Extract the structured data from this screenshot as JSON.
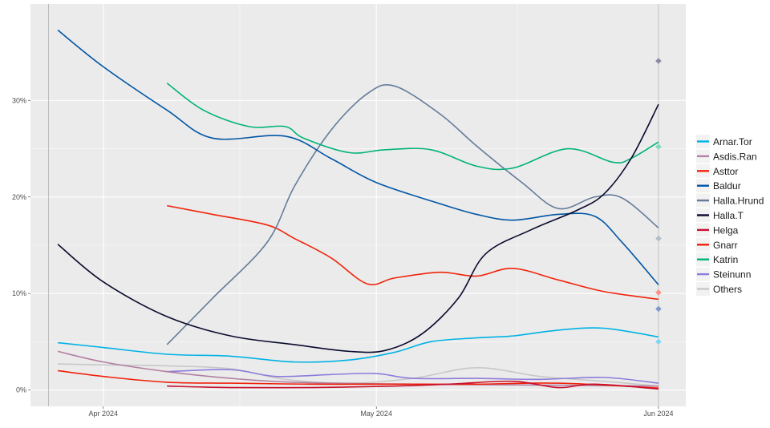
{
  "chart_data": {
    "type": "line",
    "title": "",
    "xlabel": "",
    "ylabel": "",
    "ylim": [
      -1.7,
      40
    ],
    "xlim": [
      "2024-03-24",
      "2024-06-04"
    ],
    "grid": true,
    "legend_position": "right",
    "x_ticks": [
      {
        "date": "2024-04-01",
        "label": "Apr 2024"
      },
      {
        "date": "2024-05-01",
        "label": "May 2024"
      },
      {
        "date": "2024-06-01",
        "label": "Jun 2024"
      }
    ],
    "y_ticks": [
      {
        "value": 0,
        "label": "0%"
      },
      {
        "value": 10,
        "label": "10%"
      },
      {
        "value": 20,
        "label": "20%"
      },
      {
        "value": 30,
        "label": "30%"
      }
    ],
    "vlines": [
      "2024-03-26",
      "2024-06-01"
    ],
    "series": [
      {
        "name": "Arnar.Tor",
        "color": "#00B2E5",
        "points": [
          [
            "2024-03-27",
            4.9
          ],
          [
            "2024-04-01",
            4.4
          ],
          [
            "2024-04-08",
            3.7
          ],
          [
            "2024-04-15",
            3.5
          ],
          [
            "2024-04-22",
            2.9
          ],
          [
            "2024-04-28",
            3.1
          ],
          [
            "2024-05-03",
            3.9
          ],
          [
            "2024-05-07",
            5.0
          ],
          [
            "2024-05-12",
            5.4
          ],
          [
            "2024-05-16",
            5.6
          ],
          [
            "2024-05-21",
            6.2
          ],
          [
            "2024-05-26",
            6.4
          ],
          [
            "2024-06-01",
            5.5
          ]
        ]
      },
      {
        "name": "Asdis.Ran",
        "color": "#B37FA3",
        "points": [
          [
            "2024-03-27",
            4.0
          ],
          [
            "2024-04-01",
            2.9
          ],
          [
            "2024-04-08",
            1.9
          ],
          [
            "2024-04-15",
            1.2
          ],
          [
            "2024-04-22",
            0.8
          ],
          [
            "2024-05-05",
            0.6
          ],
          [
            "2024-05-20",
            0.5
          ],
          [
            "2024-06-01",
            0.4
          ]
        ]
      },
      {
        "name": "Asttor",
        "color": "#F0240B",
        "points": [
          [
            "2024-04-08",
            19.1
          ],
          [
            "2024-04-13",
            18.2
          ],
          [
            "2024-04-19",
            17.1
          ],
          [
            "2024-04-22",
            15.7
          ],
          [
            "2024-04-26",
            13.7
          ],
          [
            "2024-04-30",
            11.0
          ],
          [
            "2024-05-03",
            11.6
          ],
          [
            "2024-05-08",
            12.2
          ],
          [
            "2024-05-12",
            11.8
          ],
          [
            "2024-05-16",
            12.6
          ],
          [
            "2024-05-21",
            11.4
          ],
          [
            "2024-05-26",
            10.2
          ],
          [
            "2024-06-01",
            9.4
          ]
        ]
      },
      {
        "name": "Baldur",
        "color": "#0055A4",
        "points": [
          [
            "2024-03-27",
            37.3
          ],
          [
            "2024-04-01",
            33.5
          ],
          [
            "2024-04-08",
            29.0
          ],
          [
            "2024-04-13",
            26.1
          ],
          [
            "2024-04-21",
            26.3
          ],
          [
            "2024-04-26",
            24.0
          ],
          [
            "2024-05-01",
            21.5
          ],
          [
            "2024-05-08",
            19.3
          ],
          [
            "2024-05-12",
            18.2
          ],
          [
            "2024-05-16",
            17.6
          ],
          [
            "2024-05-21",
            18.2
          ],
          [
            "2024-05-25",
            18.0
          ],
          [
            "2024-05-28",
            15.3
          ],
          [
            "2024-06-01",
            10.9
          ]
        ]
      },
      {
        "name": "Halla.Hrund",
        "color": "#647C99",
        "points": [
          [
            "2024-04-08",
            4.7
          ],
          [
            "2024-04-13",
            9.5
          ],
          [
            "2024-04-19",
            15.3
          ],
          [
            "2024-04-22",
            21.1
          ],
          [
            "2024-04-26",
            26.9
          ],
          [
            "2024-04-30",
            30.7
          ],
          [
            "2024-05-03",
            31.5
          ],
          [
            "2024-05-08",
            28.6
          ],
          [
            "2024-05-12",
            25.3
          ],
          [
            "2024-05-17",
            21.5
          ],
          [
            "2024-05-21",
            18.8
          ],
          [
            "2024-05-25",
            20.0
          ],
          [
            "2024-05-28",
            19.9
          ],
          [
            "2024-06-01",
            16.8
          ]
        ]
      },
      {
        "name": "Halla.T",
        "color": "#0A0A2E",
        "points": [
          [
            "2024-03-27",
            15.1
          ],
          [
            "2024-04-01",
            11.2
          ],
          [
            "2024-04-08",
            7.6
          ],
          [
            "2024-04-15",
            5.6
          ],
          [
            "2024-04-22",
            4.7
          ],
          [
            "2024-04-28",
            4.0
          ],
          [
            "2024-05-02",
            4.1
          ],
          [
            "2024-05-06",
            5.8
          ],
          [
            "2024-05-10",
            9.5
          ],
          [
            "2024-05-13",
            14.1
          ],
          [
            "2024-05-18",
            16.6
          ],
          [
            "2024-05-23",
            18.6
          ],
          [
            "2024-05-26",
            20.3
          ],
          [
            "2024-05-29",
            24.0
          ],
          [
            "2024-06-01",
            29.6
          ]
        ]
      },
      {
        "name": "Helga",
        "color": "#C8102E",
        "points": [
          [
            "2024-04-08",
            0.4
          ],
          [
            "2024-04-15",
            0.25
          ],
          [
            "2024-04-24",
            0.25
          ],
          [
            "2024-05-03",
            0.4
          ],
          [
            "2024-05-09",
            0.6
          ],
          [
            "2024-05-16",
            0.9
          ],
          [
            "2024-05-21",
            0.25
          ],
          [
            "2024-05-25",
            0.6
          ],
          [
            "2024-06-01",
            0.1
          ]
        ]
      },
      {
        "name": "Gnarr",
        "color": "#F0200A",
        "points": [
          [
            "2024-03-27",
            2.0
          ],
          [
            "2024-04-01",
            1.4
          ],
          [
            "2024-04-08",
            0.8
          ],
          [
            "2024-04-15",
            0.7
          ],
          [
            "2024-04-24",
            0.6
          ],
          [
            "2024-05-03",
            0.6
          ],
          [
            "2024-05-12",
            0.6
          ],
          [
            "2024-05-21",
            0.7
          ],
          [
            "2024-06-01",
            0.2
          ]
        ]
      },
      {
        "name": "Katrin",
        "color": "#00B37A",
        "points": [
          [
            "2024-04-08",
            31.8
          ],
          [
            "2024-04-12",
            29.0
          ],
          [
            "2024-04-17",
            27.3
          ],
          [
            "2024-04-21",
            27.3
          ],
          [
            "2024-04-23",
            26.1
          ],
          [
            "2024-04-28",
            24.6
          ],
          [
            "2024-05-02",
            24.9
          ],
          [
            "2024-05-07",
            24.9
          ],
          [
            "2024-05-12",
            23.2
          ],
          [
            "2024-05-16",
            23.0
          ],
          [
            "2024-05-22",
            25.0
          ],
          [
            "2024-05-27",
            23.6
          ],
          [
            "2024-05-29",
            24.0
          ],
          [
            "2024-06-01",
            25.7
          ]
        ]
      },
      {
        "name": "Steinunn",
        "color": "#8E7CDB",
        "points": [
          [
            "2024-04-08",
            1.9
          ],
          [
            "2024-04-15",
            2.1
          ],
          [
            "2024-04-20",
            1.4
          ],
          [
            "2024-04-26",
            1.6
          ],
          [
            "2024-05-01",
            1.7
          ],
          [
            "2024-05-05",
            1.2
          ],
          [
            "2024-05-12",
            1.2
          ],
          [
            "2024-05-19",
            1.1
          ],
          [
            "2024-05-26",
            1.3
          ],
          [
            "2024-06-01",
            0.7
          ]
        ]
      },
      {
        "name": "Others",
        "color": "#C8C8C8",
        "points": [
          [
            "2024-03-27",
            2.7
          ],
          [
            "2024-04-01",
            2.6
          ],
          [
            "2024-04-08",
            2.5
          ],
          [
            "2024-04-15",
            2.2
          ],
          [
            "2024-04-21",
            1.1
          ],
          [
            "2024-04-28",
            0.7
          ],
          [
            "2024-05-05",
            1.2
          ],
          [
            "2024-05-12",
            2.3
          ],
          [
            "2024-05-19",
            1.4
          ],
          [
            "2024-05-26",
            0.9
          ],
          [
            "2024-06-01",
            0.4
          ]
        ]
      }
    ],
    "result_markers": [
      {
        "date": "2024-06-01",
        "value": 34.1,
        "color": "#8C8CA0"
      },
      {
        "date": "2024-06-01",
        "value": 25.2,
        "color": "#7FD9BC"
      },
      {
        "date": "2024-06-01",
        "value": 15.7,
        "color": "#B1BDCC"
      },
      {
        "date": "2024-06-01",
        "value": 10.1,
        "color": "#F79485"
      },
      {
        "date": "2024-06-01",
        "value": 8.4,
        "color": "#7F9ACC"
      },
      {
        "date": "2024-06-01",
        "value": 5.0,
        "color": "#7FD8F2"
      }
    ]
  }
}
